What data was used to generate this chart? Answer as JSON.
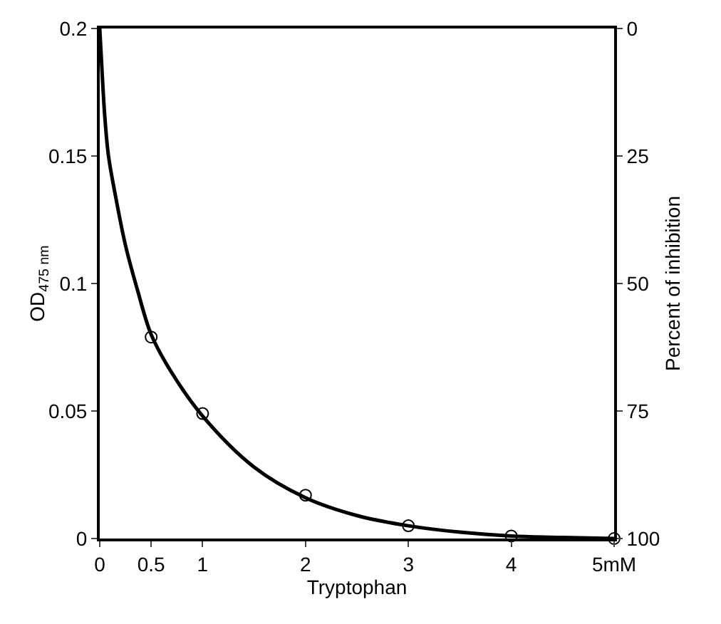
{
  "chart_data": {
    "type": "scatter",
    "xlabel": "Tryptophan",
    "ylabel": "OD$_{475 nm}$",
    "y2label": "Percent of inhibition",
    "xlim": [
      0,
      5
    ],
    "xticks": [
      0,
      0.5,
      1,
      2,
      3,
      4,
      {
        "value": 5,
        "label": "5mM"
      }
    ],
    "ylim": [
      0,
      0.2
    ],
    "yticks": [
      0,
      0.05,
      0.1,
      0.15,
      0.2
    ],
    "y2lim": [
      100,
      0
    ],
    "y2ticks": [
      0,
      25,
      50,
      75,
      100
    ],
    "grid": false,
    "marker": "circle",
    "series": [
      {
        "type": "line",
        "color": "#000000",
        "marker": "none",
        "x": [
          0,
          0.02,
          0.05,
          0.085,
          0.15,
          0.25,
          0.37,
          0.5,
          0.7,
          1,
          1.5,
          2,
          2.5,
          3,
          3.5,
          4,
          4.5,
          5
        ],
        "values": [
          0.2,
          0.185,
          0.165,
          0.15,
          0.135,
          0.115,
          0.097,
          0.08,
          0.065,
          0.048,
          0.028,
          0.016,
          0.009,
          0.005,
          0.0025,
          0.001,
          0.0004,
          0
        ]
      },
      {
        "color": "#000000",
        "x": [
          0.5,
          1,
          2,
          3,
          4,
          5
        ],
        "values": [
          0.079,
          0.049,
          0.017,
          0.005,
          0.001,
          0
        ]
      }
    ]
  }
}
